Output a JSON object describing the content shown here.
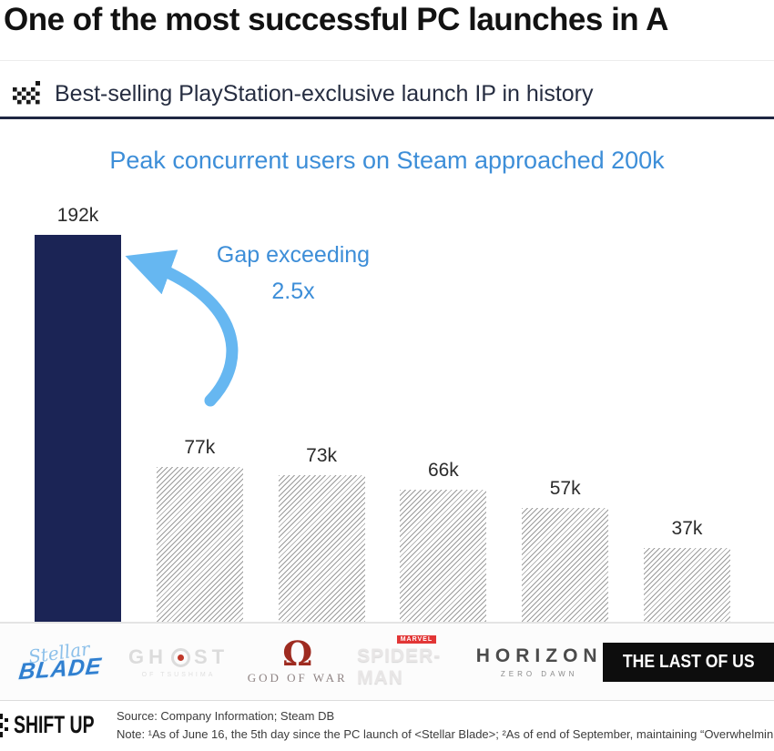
{
  "header": {
    "title": "One of the most successful PC launches in A",
    "subtitle": "Best-selling PlayStation-exclusive launch IP in history"
  },
  "chart_data": {
    "type": "bar",
    "title": "Peak concurrent users on Steam approached 200k",
    "categories": [
      "Stellar Blade",
      "Ghost of Tsushima",
      "God of War",
      "Marvel's Spider-Man",
      "Horizon Zero Dawn",
      "The Last of Us"
    ],
    "values": [
      192000,
      77000,
      73000,
      66000,
      57000,
      37000
    ],
    "value_labels": [
      "192k",
      "77k",
      "73k",
      "66k",
      "57k",
      "37k"
    ],
    "ylabel": "Peak concurrent users on Steam",
    "ylim": [
      0,
      200000
    ],
    "grid": false,
    "legend": "none",
    "highlight_index": 0,
    "annotation": {
      "line1": "Gap exceeding",
      "line2": "2.5x"
    }
  },
  "colors": {
    "accent_blue": "#3d8ed8",
    "arrow_blue": "#66b7f1",
    "navy_bar": "#1b2455",
    "underline_navy": "#1e2742",
    "hatch_gray": "#9b9b9b"
  },
  "logos": [
    {
      "name": "Stellar Blade",
      "line1": "Stellar",
      "line2": "BLADE"
    },
    {
      "name": "Ghost of Tsushima",
      "pre": "GH",
      "post": "ST",
      "sub": "OF TSUSHIMA"
    },
    {
      "name": "God of War",
      "symbol": "Ω",
      "text": "GOD OF WAR"
    },
    {
      "name": "Marvel's Spider-Man",
      "badge": "MARVEL",
      "text": "SPIDER-MAN"
    },
    {
      "name": "Horizon Zero Dawn",
      "line1": "HORIZON",
      "line2": "ZERO DAWN"
    },
    {
      "name": "The Last of Us",
      "text": "THE LAST OF US"
    }
  ],
  "footer": {
    "brand": "SHIFT UP",
    "source": "Source: Company Information; Steam DB",
    "note": "Note: ¹As of June 16, the 5th day since the PC launch of <Stellar Blade>; ²As of end of September, maintaining “Overwhelmin"
  }
}
